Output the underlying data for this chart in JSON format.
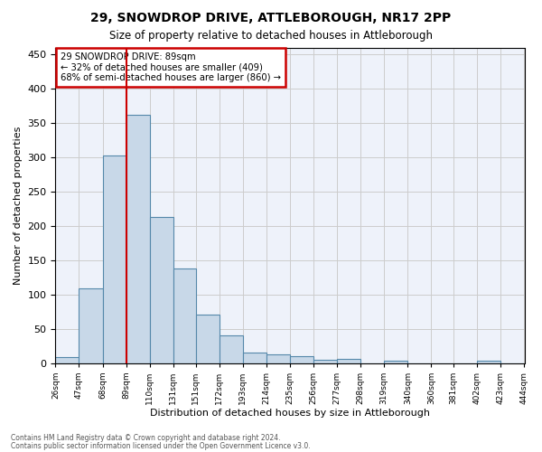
{
  "title1": "29, SNOWDROP DRIVE, ATTLEBOROUGH, NR17 2PP",
  "title2": "Size of property relative to detached houses in Attleborough",
  "xlabel": "Distribution of detached houses by size in Attleborough",
  "ylabel": "Number of detached properties",
  "footer1": "Contains HM Land Registry data © Crown copyright and database right 2024.",
  "footer2": "Contains public sector information licensed under the Open Government Licence v3.0.",
  "annotation_line1": "29 SNOWDROP DRIVE: 89sqm",
  "annotation_line2": "← 32% of detached houses are smaller (409)",
  "annotation_line3": "68% of semi-detached houses are larger (860) →",
  "property_size": 89,
  "bar_edges": [
    26,
    47,
    68,
    89,
    110,
    131,
    151,
    172,
    193,
    214,
    235,
    256,
    277,
    298,
    319,
    340,
    361,
    381,
    402,
    423,
    444
  ],
  "bar_heights": [
    8,
    109,
    303,
    362,
    213,
    138,
    70,
    40,
    15,
    12,
    10,
    5,
    6,
    0,
    3,
    0,
    0,
    0,
    4,
    0
  ],
  "bar_color": "#c8d8e8",
  "bar_edge_color": "#5588aa",
  "vline_color": "#cc0000",
  "box_edge_color": "#cc0000",
  "grid_color": "#cccccc",
  "bg_color": "#eef2fa",
  "tick_labels": [
    "26sqm",
    "47sqm",
    "68sqm",
    "89sqm",
    "110sqm",
    "131sqm",
    "151sqm",
    "172sqm",
    "193sqm",
    "214sqm",
    "235sqm",
    "256sqm",
    "277sqm",
    "298sqm",
    "319sqm",
    "340sqm",
    "360sqm",
    "381sqm",
    "402sqm",
    "423sqm",
    "444sqm"
  ],
  "ylim": [
    0,
    460
  ],
  "yticks": [
    0,
    50,
    100,
    150,
    200,
    250,
    300,
    350,
    400,
    450
  ]
}
